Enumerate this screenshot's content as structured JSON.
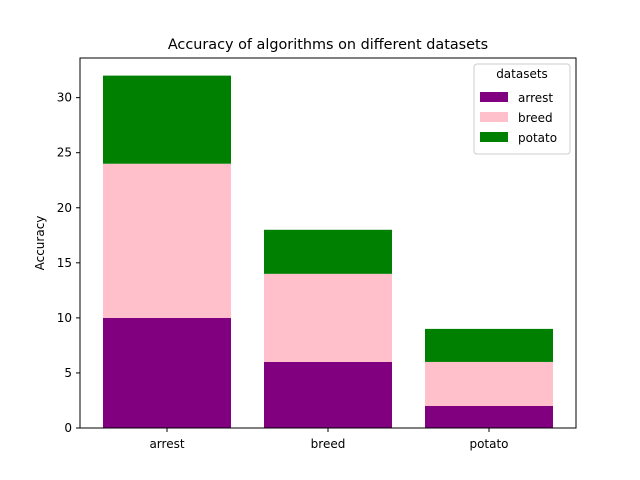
{
  "chart_data": {
    "type": "bar",
    "stacked": true,
    "title": "Accuracy of algorithms on different datasets",
    "xlabel": "",
    "ylabel": "Accuracy",
    "categories": [
      "arrest",
      "breed",
      "potato"
    ],
    "series": [
      {
        "name": "arrest",
        "color": "#800080",
        "values": [
          10,
          6,
          2
        ]
      },
      {
        "name": "breed",
        "color": "#ffc0cb",
        "values": [
          14,
          8,
          4
        ]
      },
      {
        "name": "potato",
        "color": "#008000",
        "values": [
          8,
          4,
          3
        ]
      }
    ],
    "ylim": [
      0,
      33.6
    ],
    "yticks": [
      0,
      5,
      10,
      15,
      20,
      25,
      30
    ],
    "legend": {
      "title": "datasets",
      "placement": "top-right"
    },
    "grid": false
  }
}
